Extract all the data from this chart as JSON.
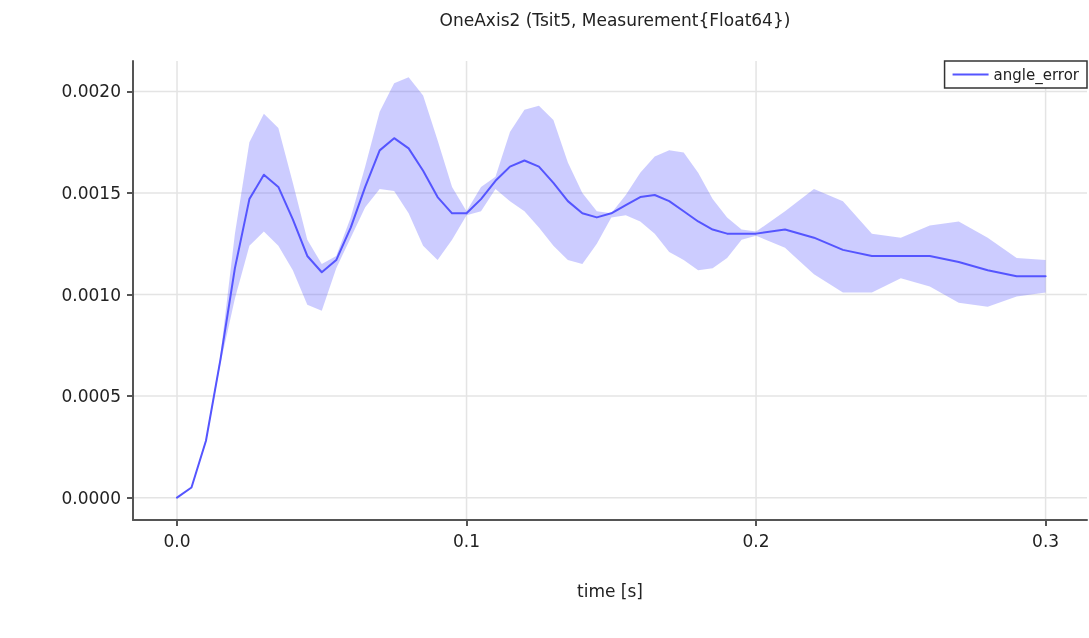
{
  "chart_data": {
    "type": "line",
    "title": "OneAxis2 (Tsit5, Measurement{Float64})",
    "xlabel": "time [s]",
    "xlim": [
      -0.0152,
      0.3143
    ],
    "xticks": [
      {
        "value": 0,
        "label": "0.0"
      },
      0.1,
      0.2,
      0.3
    ],
    "ylim": [
      -0.00011,
      0.00215
    ],
    "yticks": [
      {
        "value": 0,
        "label": "0.0000"
      },
      {
        "value": 0.0005,
        "label": "0.0005"
      },
      {
        "value": 0.001,
        "label": "0.0010"
      },
      {
        "value": 0.0015,
        "label": "0.0015"
      },
      {
        "value": 0.002,
        "label": "0.0020"
      }
    ],
    "grid": true,
    "legend": "top right",
    "marker": "none",
    "line_style": "solid",
    "series": [
      {
        "name": "angle_error",
        "color": "#5555ff",
        "x": [
          0,
          0.005,
          0.01,
          0.015,
          0.02,
          0.025,
          0.03,
          0.035,
          0.04,
          0.045,
          0.05,
          0.055,
          0.06,
          0.065,
          0.07,
          0.075,
          0.08,
          0.085,
          0.09,
          0.095,
          0.1,
          0.105,
          0.11,
          0.115,
          0.12,
          0.125,
          0.13,
          0.135,
          0.14,
          0.145,
          0.15,
          0.155,
          0.16,
          0.165,
          0.17,
          0.175,
          0.18,
          0.185,
          0.19,
          0.195,
          0.2,
          0.21,
          0.22,
          0.23,
          0.24,
          0.25,
          0.26,
          0.27,
          0.28,
          0.29,
          0.3
        ],
        "values": [
          0,
          5e-05,
          0.00028,
          0.00068,
          0.00113,
          0.00147,
          0.00159,
          0.00153,
          0.00137,
          0.00119,
          0.00111,
          0.00117,
          0.00133,
          0.00153,
          0.00171,
          0.00177,
          0.00172,
          0.00161,
          0.00148,
          0.0014,
          0.0014,
          0.00147,
          0.00156,
          0.00163,
          0.00166,
          0.00163,
          0.00155,
          0.00146,
          0.0014,
          0.00138,
          0.0014,
          0.00144,
          0.00148,
          0.00149,
          0.00146,
          0.00141,
          0.00136,
          0.00132,
          0.0013,
          0.0013,
          0.0013,
          0.00132,
          0.00128,
          0.00122,
          0.00119,
          0.00119,
          0.00119,
          0.00116,
          0.00112,
          0.00109,
          0.00109
        ],
        "upper": [
          0,
          5e-05,
          0.00029,
          0.0007,
          0.0013,
          0.00175,
          0.00189,
          0.00182,
          0.00155,
          0.00127,
          0.00115,
          0.00119,
          0.00138,
          0.00163,
          0.0019,
          0.00204,
          0.00207,
          0.00198,
          0.00176,
          0.00153,
          0.00141,
          0.00153,
          0.00158,
          0.0018,
          0.00191,
          0.00193,
          0.00186,
          0.00165,
          0.0015,
          0.00141,
          0.0014,
          0.00149,
          0.0016,
          0.00168,
          0.00171,
          0.0017,
          0.0016,
          0.00147,
          0.00138,
          0.00132,
          0.00131,
          0.00141,
          0.00152,
          0.00146,
          0.0013,
          0.00128,
          0.00134,
          0.00136,
          0.00128,
          0.00118,
          0.00117
        ],
        "lower": [
          0,
          5e-05,
          0.00027,
          0.00066,
          0.00098,
          0.00124,
          0.00131,
          0.00124,
          0.00112,
          0.00095,
          0.00092,
          0.00113,
          0.00128,
          0.00143,
          0.00152,
          0.00151,
          0.0014,
          0.00124,
          0.00117,
          0.00127,
          0.00139,
          0.00141,
          0.00152,
          0.00146,
          0.00141,
          0.00133,
          0.00124,
          0.00117,
          0.00115,
          0.00125,
          0.00138,
          0.00139,
          0.00136,
          0.0013,
          0.00121,
          0.00117,
          0.00112,
          0.00113,
          0.00118,
          0.00127,
          0.00129,
          0.00123,
          0.0011,
          0.00101,
          0.00101,
          0.00108,
          0.00104,
          0.00096,
          0.00094,
          0.00099,
          0.00101
        ]
      }
    ]
  }
}
